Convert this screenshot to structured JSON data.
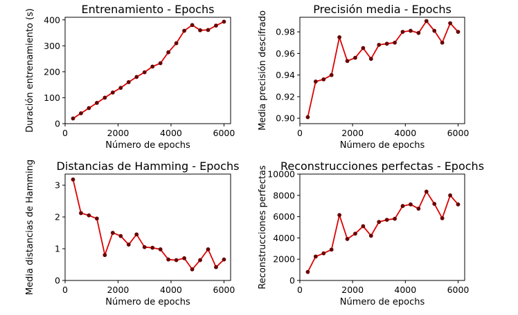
{
  "colors": {
    "line": "#dd0000",
    "marker": "#660000"
  },
  "chart_data": [
    {
      "type": "line",
      "title": "Entrenamiento - Epochs",
      "xlabel": "Número de epochs",
      "ylabel": "Duración entrenamiento (s)",
      "xlim": [
        0,
        6250
      ],
      "ylim": [
        0,
        410
      ],
      "xticks": [
        0,
        2000,
        4000,
        6000
      ],
      "yticks": [
        0,
        100,
        200,
        300,
        400
      ],
      "ytick_labels": [
        "0",
        "100",
        "200",
        "300",
        "400"
      ],
      "x": [
        300,
        600,
        900,
        1200,
        1500,
        1800,
        2100,
        2400,
        2700,
        3000,
        3300,
        3600,
        3900,
        4200,
        4500,
        4800,
        5100,
        5400,
        5700,
        6000
      ],
      "y": [
        20,
        40,
        60,
        80,
        100,
        120,
        138,
        160,
        180,
        198,
        220,
        233,
        275,
        310,
        358,
        380,
        360,
        361,
        378,
        393
      ]
    },
    {
      "type": "line",
      "title": "Precisión media - Epochs",
      "xlabel": "Número de epochs",
      "ylabel": "Media precisión descifrado",
      "xlim": [
        0,
        6250
      ],
      "ylim": [
        0.895,
        0.9935
      ],
      "xticks": [
        0,
        2000,
        4000,
        6000
      ],
      "yticks": [
        0.9,
        0.92,
        0.94,
        0.96,
        0.98
      ],
      "ytick_labels": [
        "0.90",
        "0.92",
        "0.94",
        "0.96",
        "0.98"
      ],
      "x": [
        300,
        600,
        900,
        1200,
        1500,
        1800,
        2100,
        2400,
        2700,
        3000,
        3300,
        3600,
        3900,
        4200,
        4500,
        4800,
        5100,
        5400,
        5700,
        6000
      ],
      "y": [
        0.901,
        0.934,
        0.936,
        0.94,
        0.975,
        0.953,
        0.956,
        0.965,
        0.955,
        0.968,
        0.969,
        0.97,
        0.98,
        0.981,
        0.979,
        0.99,
        0.981,
        0.97,
        0.988,
        0.98
      ]
    },
    {
      "type": "line",
      "title": "Distancias de Hamming - Epochs",
      "xlabel": "Número de epochs",
      "ylabel": "Media distancias de Hamming",
      "xlim": [
        0,
        6250
      ],
      "ylim": [
        0,
        3.35
      ],
      "xticks": [
        0,
        2000,
        4000,
        6000
      ],
      "yticks": [
        0,
        1,
        2,
        3
      ],
      "ytick_labels": [
        "0",
        "1",
        "2",
        "3"
      ],
      "x": [
        300,
        600,
        900,
        1200,
        1500,
        1800,
        2100,
        2400,
        2700,
        3000,
        3300,
        3600,
        3900,
        4200,
        4500,
        4800,
        5100,
        5400,
        5700,
        6000
      ],
      "y": [
        3.18,
        2.12,
        2.05,
        1.95,
        0.8,
        1.5,
        1.4,
        1.13,
        1.45,
        1.05,
        1.03,
        0.98,
        0.66,
        0.64,
        0.7,
        0.35,
        0.64,
        0.98,
        0.42,
        0.66
      ]
    },
    {
      "type": "line",
      "title": "Reconstrucciones perfectas - Epochs",
      "xlabel": "Número de epochs",
      "ylabel": "Reconstrucciones perfectas",
      "xlim": [
        0,
        6250
      ],
      "ylim": [
        0,
        10000
      ],
      "xticks": [
        0,
        2000,
        4000,
        6000
      ],
      "yticks": [
        0,
        2000,
        4000,
        6000,
        8000,
        10000
      ],
      "ytick_labels": [
        "0",
        "2000",
        "4000",
        "6000",
        "8000",
        "10000"
      ],
      "x": [
        300,
        600,
        900,
        1200,
        1500,
        1800,
        2100,
        2400,
        2700,
        3000,
        3300,
        3600,
        3900,
        4200,
        4500,
        4800,
        5100,
        5400,
        5700,
        6000
      ],
      "y": [
        800,
        2250,
        2550,
        2900,
        6150,
        3900,
        4400,
        5100,
        4200,
        5500,
        5700,
        5800,
        7000,
        7150,
        6750,
        8350,
        7200,
        5850,
        8000,
        7150
      ]
    }
  ]
}
